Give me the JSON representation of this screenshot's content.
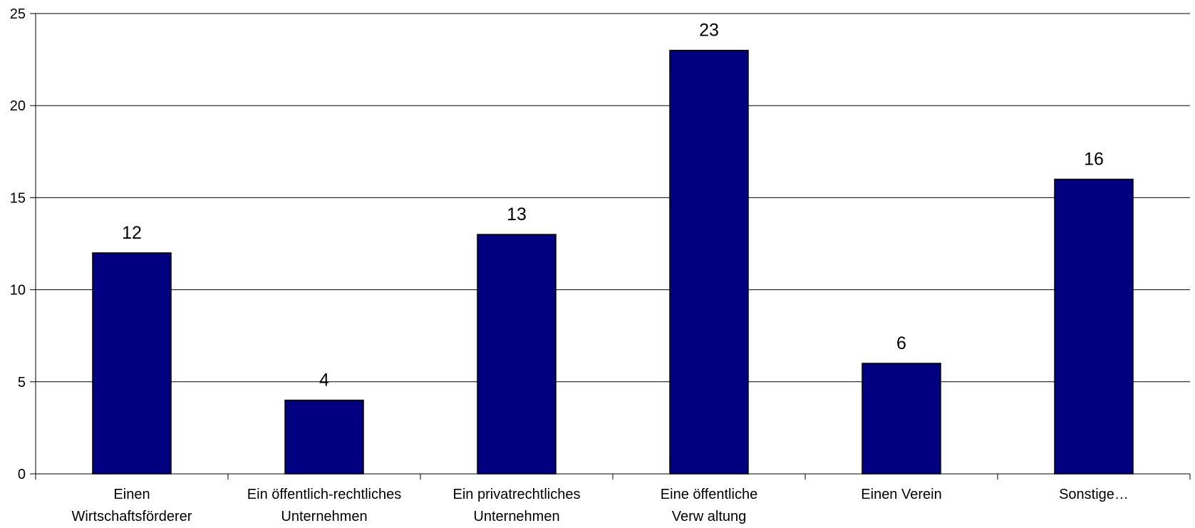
{
  "chart_data": {
    "type": "bar",
    "categories": [
      [
        "Einen",
        "Wirtschaftsförderer"
      ],
      [
        "Ein öffentlich-rechtliches",
        "Unternehmen"
      ],
      [
        "Ein privatrechtliches",
        "Unternehmen"
      ],
      [
        "Eine öffentliche",
        "Verw altung"
      ],
      [
        "Einen Verein"
      ],
      [
        "Sonstige…"
      ]
    ],
    "values": [
      12,
      4,
      13,
      23,
      6,
      16
    ],
    "value_labels": [
      "12",
      "4",
      "13",
      "23",
      "6",
      "16"
    ],
    "ylim": [
      0,
      25
    ],
    "yticks": [
      "0",
      "5",
      "10",
      "15",
      "20",
      "25"
    ],
    "title": "",
    "xlabel": "",
    "ylabel": "",
    "grid": true,
    "legend": "none",
    "bar_color": "#000080",
    "bar_border_color": "#000000",
    "grid_color": "#000000"
  }
}
